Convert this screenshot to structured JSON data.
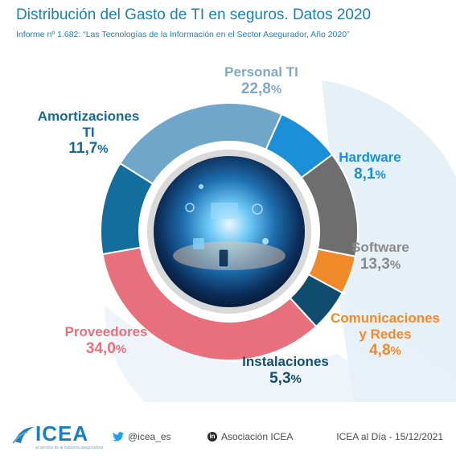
{
  "header": {
    "title": "Distribución del Gasto de TI en seguros. Datos 2020",
    "subtitle": "Informe nº 1.682: “Las Tecnologías de la Información en el Sector Asegurador, Año 2020”"
  },
  "chart_data": {
    "type": "pie",
    "title": "Distribución del Gasto de TI en seguros. Datos 2020",
    "unit": "%",
    "slices": [
      {
        "name": "Personal TI",
        "value": 22.8,
        "display": "22,8",
        "color": "#6fa6c9",
        "label_color": "#7fa9c6"
      },
      {
        "name": "Hardware",
        "value": 8.1,
        "display": "8,1",
        "color": "#1c8fd9",
        "label_color": "#1c8fd9"
      },
      {
        "name": "Software",
        "value": 13.3,
        "display": "13,3",
        "color": "#6e6e6e",
        "label_color": "#8a8a8a"
      },
      {
        "name": "Comunicaciones y Redes",
        "value": 4.8,
        "display": "4,8",
        "color": "#f08a2a",
        "label_color": "#f08a2a"
      },
      {
        "name": "Instalaciones",
        "value": 5.3,
        "display": "5,3",
        "color": "#0f4c6e",
        "label_color": "#154f70"
      },
      {
        "name": "Proveedores",
        "value": 34.0,
        "display": "34,0",
        "color": "#e8707c",
        "label_color": "#e8707c"
      },
      {
        "name": "Amortizaciones TI",
        "value": 11.7,
        "display": "11,7",
        "color": "#136e9e",
        "label_color": "#166a94"
      }
    ]
  },
  "labels": {
    "personal": {
      "name": "Personal TI",
      "value": "22,8",
      "pct": "%"
    },
    "hardware": {
      "name": "Hardware",
      "value": "8,1",
      "pct": "%"
    },
    "software": {
      "name": "Software",
      "value": "13,3",
      "pct": "%"
    },
    "comunicaciones": {
      "line1": "Comunicaciones",
      "line2": "y Redes",
      "value": "4,8",
      "pct": "%"
    },
    "instalaciones": {
      "name": "Instalaciones",
      "value": "5,3",
      "pct": "%"
    },
    "proveedores": {
      "name": "Proveedores",
      "value": "34,0",
      "pct": "%"
    },
    "amortizaciones": {
      "line1": "Amortizaciones",
      "line2": "TI",
      "value": "11,7",
      "pct": "%"
    }
  },
  "footer": {
    "logo": "ICEA",
    "logo_tagline": "al servicio de la industria aseguradora",
    "twitter": "@icea_es",
    "linkedin": "Asociación ICEA",
    "date": "ICEA al Día - 15/12/2021"
  },
  "colors": {
    "title": "#1e7fb4",
    "background_shape": "#e6f0f7"
  }
}
